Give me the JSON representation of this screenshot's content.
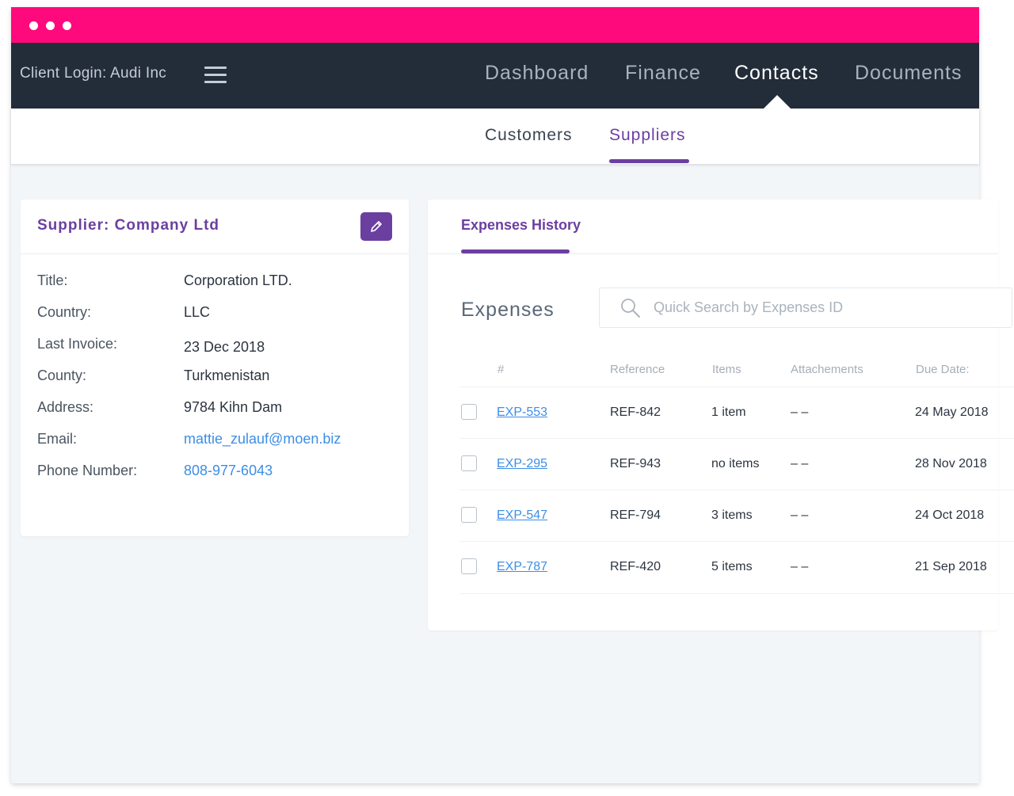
{
  "window": {
    "titlebar_color": "#ff0a7c",
    "nav_color": "#232c39",
    "accent": "#6b3fa0",
    "link_color": "#3d8ee6"
  },
  "topnav": {
    "client_login": "Client Login: Audi Inc",
    "items": [
      {
        "label": "Dashboard",
        "active": false
      },
      {
        "label": "Finance",
        "active": false
      },
      {
        "label": "Contacts",
        "active": true
      },
      {
        "label": "Documents",
        "active": false
      }
    ]
  },
  "subnav": {
    "items": [
      {
        "label": "Customers",
        "active": false
      },
      {
        "label": "Suppliers",
        "active": true
      }
    ]
  },
  "supplier": {
    "title": "Supplier: Company Ltd",
    "edit_icon": "pencil-icon",
    "fields": [
      {
        "label": "Title:",
        "value": "Corporation LTD."
      },
      {
        "label": "Country:",
        "value": "LLC"
      },
      {
        "label": "Last Invoice:",
        "value": "23 Dec 2018"
      },
      {
        "label": "County:",
        "value": "Turkmenistan"
      },
      {
        "label": "Address:",
        "value": "9784 Kihn Dam"
      },
      {
        "label": "Email:",
        "value": "mattie_zulauf@moen.biz"
      },
      {
        "label": "Phone Number:",
        "value": "808-977-6043"
      }
    ]
  },
  "expenses": {
    "tab": "Expenses History",
    "heading": "Expenses",
    "search_placeholder": "Quick Search by Expenses ID",
    "search_icon": "search-icon",
    "columns": [
      "#",
      "Reference",
      "Items",
      "Attachements",
      "Due Date:"
    ],
    "rows": [
      {
        "id": "EXP-553",
        "reference": "REF-842",
        "items": "1 item",
        "attachments": "– –",
        "due": "24 May 2018"
      },
      {
        "id": "EXP-295",
        "reference": "REF-943",
        "items": "no items",
        "attachments": "– –",
        "due": "28 Nov 2018"
      },
      {
        "id": "EXP-547",
        "reference": "REF-794",
        "items": "3 items",
        "attachments": "– –",
        "due": "24 Oct 2018"
      },
      {
        "id": "EXP-787",
        "reference": "REF-420",
        "items": "5 items",
        "attachments": "– –",
        "due": "21 Sep 2018"
      }
    ]
  }
}
